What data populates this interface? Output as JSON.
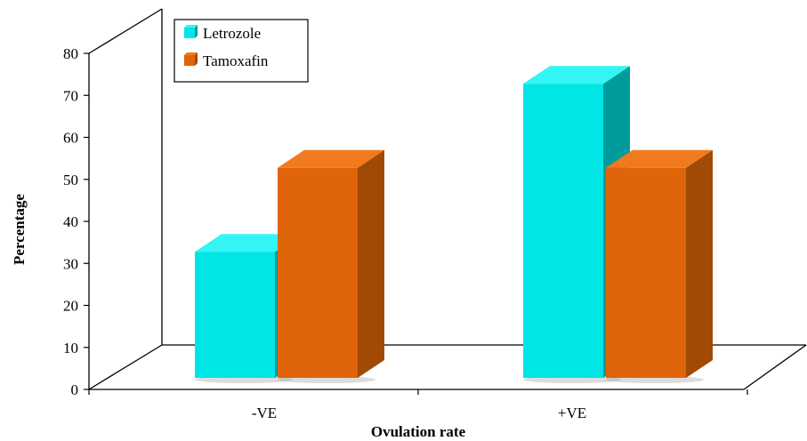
{
  "chart_data": {
    "type": "bar",
    "categories": [
      "-VE",
      "+VE"
    ],
    "series": [
      {
        "name": "Letrozole",
        "values": [
          30,
          70
        ],
        "color": "#00E6E6",
        "side_color": "#009C9C",
        "top_color": "#33F5F5"
      },
      {
        "name": "Tamoxafin",
        "values": [
          50,
          50
        ],
        "color": "#E0640A",
        "side_color": "#A04A05",
        "top_color": "#F27A1E"
      }
    ],
    "title": "",
    "xlabel": "Ovulation rate",
    "ylabel": "Percentage",
    "ylim": [
      0,
      80
    ],
    "yticks": [
      "0",
      "10",
      "20",
      "30",
      "40",
      "50",
      "60",
      "70",
      "80"
    ],
    "grid": false,
    "legend_position": "top-left",
    "three_d": true
  }
}
